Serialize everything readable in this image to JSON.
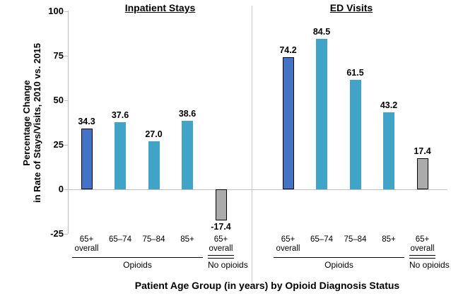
{
  "y_axis": {
    "title_line1": "Percentage Change",
    "title_line2": "in Rate of Stays/Visits, 2010 vs. 2015"
  },
  "x_axis": {
    "title": "Patient Age Group (in years) by Opioid Diagnosis Status"
  },
  "colors": {
    "overall_opioids": "#4472C4",
    "age_group": "#41A4C7",
    "no_opioids": "#ABABAB",
    "bar_border": "#000000",
    "axis_line": "#BFBFBF",
    "panel_divider": "#C9C9C9",
    "group_rule": "#000000"
  },
  "chart_data": {
    "type": "bar",
    "title": "",
    "xlabel": "Patient Age Group (in years) by Opioid Diagnosis Status",
    "ylabel": "Percentage Change in Rate of Stays/Visits, 2010 vs. 2015",
    "ylim": [
      -25,
      100
    ],
    "y_ticks": [
      100,
      75,
      50,
      25,
      0,
      -25
    ],
    "grid": false,
    "legend": false,
    "panels": [
      {
        "title": "Inpatient Stays",
        "groups": [
          {
            "label": "Opioids",
            "rule": "single",
            "bars": [
              {
                "category_lines": [
                  "65+",
                  "overall"
                ],
                "value": 34.3,
                "label": "34.3",
                "series": "overall_opioids"
              },
              {
                "category_lines": [
                  "65–74"
                ],
                "value": 37.6,
                "label": "37.6",
                "series": "age_group"
              },
              {
                "category_lines": [
                  "75–84"
                ],
                "value": 27.0,
                "label": "27.0",
                "series": "age_group"
              },
              {
                "category_lines": [
                  "85+"
                ],
                "value": 38.6,
                "label": "38.6",
                "series": "age_group"
              }
            ]
          },
          {
            "label": "No opioids",
            "rule": "double",
            "bars": [
              {
                "category_lines": [
                  "65+",
                  "overall"
                ],
                "value": -17.4,
                "label": "-17.4",
                "series": "no_opioids"
              }
            ]
          }
        ]
      },
      {
        "title": "ED Visits",
        "groups": [
          {
            "label": "Opioids",
            "rule": "single",
            "bars": [
              {
                "category_lines": [
                  "65+",
                  "overall"
                ],
                "value": 74.2,
                "label": "74.2",
                "series": "overall_opioids"
              },
              {
                "category_lines": [
                  "65–74"
                ],
                "value": 84.5,
                "label": "84.5",
                "series": "age_group"
              },
              {
                "category_lines": [
                  "75–84"
                ],
                "value": 61.5,
                "label": "61.5",
                "series": "age_group"
              },
              {
                "category_lines": [
                  "85+"
                ],
                "value": 43.2,
                "label": "43.2",
                "series": "age_group"
              }
            ]
          },
          {
            "label": "No opioids",
            "rule": "double",
            "bars": [
              {
                "category_lines": [
                  "65+",
                  "overall"
                ],
                "value": 17.4,
                "label": "17.4",
                "series": "no_opioids"
              }
            ]
          }
        ]
      }
    ]
  }
}
